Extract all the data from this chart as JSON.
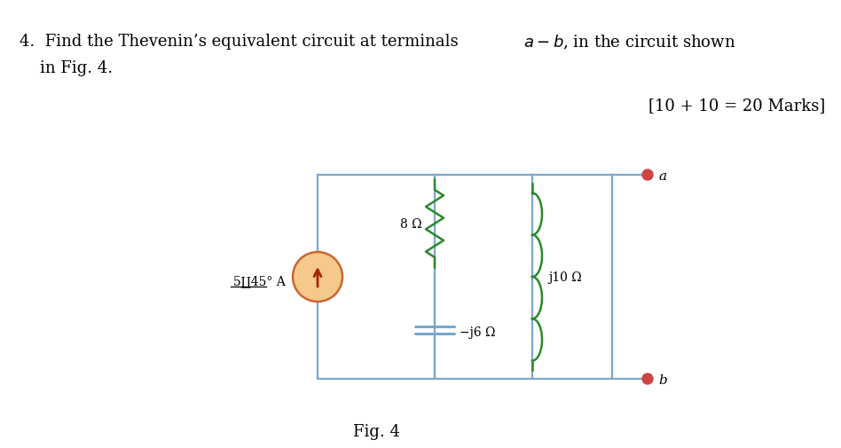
{
  "fig_label": "Fig. 4",
  "circuit_color": "#7ba7cc",
  "resistor_color": "#2a8a2a",
  "inductor_color": "#2a8a2a",
  "source_fill_color": "#f5c98a",
  "source_edge_color": "#cc6633",
  "source_arrow_color": "#aa2200",
  "terminal_color": "#cc4444",
  "label_8ohm": "8 Ω",
  "label_neg_j6": "−j6 Ω",
  "label_j10": "j10 Ω",
  "label_source": "5∐45° A",
  "label_a": "a",
  "label_b": "b",
  "bg_color": "#ffffff",
  "line1": "4.  Find the Thevenin’s equivalent circuit at terminals ",
  "line1b": ", in the circuit shown",
  "line2": "in Fig. 4.",
  "marks": "[10 + 10 = 20 Marks]"
}
